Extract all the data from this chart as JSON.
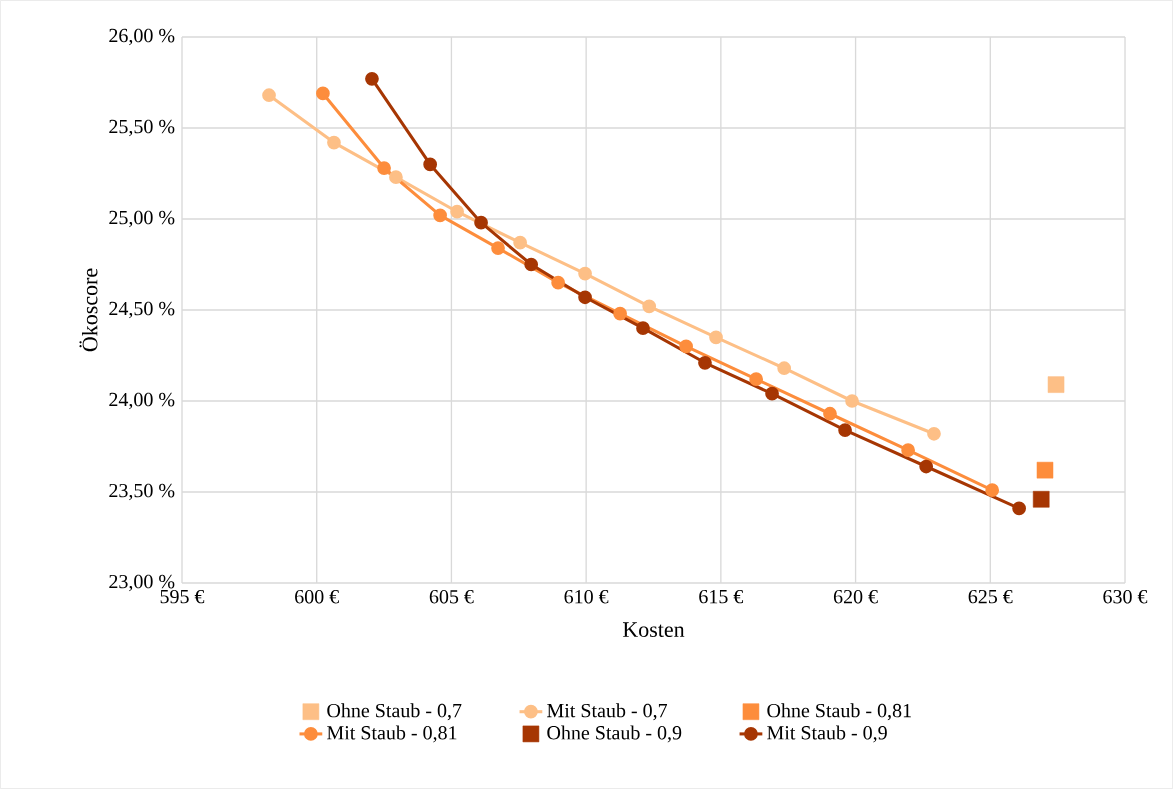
{
  "chart_data": {
    "type": "line",
    "xlabel": "Kosten",
    "ylabel": "Ökoscore",
    "xlim": [
      595,
      630
    ],
    "ylim": [
      23,
      26
    ],
    "xticks": [
      {
        "value": 595,
        "label": "595 €"
      },
      {
        "value": 600,
        "label": "600 €"
      },
      {
        "value": 605,
        "label": "605 €"
      },
      {
        "value": 610,
        "label": "610 €"
      },
      {
        "value": 615,
        "label": "615 €"
      },
      {
        "value": 620,
        "label": "620 €"
      },
      {
        "value": 625,
        "label": "625 €"
      },
      {
        "value": 630,
        "label": "630 €"
      }
    ],
    "yticks": [
      {
        "value": 23,
        "label": "23,00 %"
      },
      {
        "value": 23.5,
        "label": "23,50 %"
      },
      {
        "value": 24,
        "label": "24,00 %"
      },
      {
        "value": 24.5,
        "label": "24,50 %"
      },
      {
        "value": 25,
        "label": "25,00 %"
      },
      {
        "value": 25.5,
        "label": "25,50 %"
      },
      {
        "value": 26,
        "label": "26,00 %"
      }
    ],
    "grid": true,
    "legend": "bottom",
    "series": [
      {
        "name": "Ohne Staub - 0,7",
        "type": "scatter",
        "marker": "square",
        "color": "#fdbf86",
        "x": [
          627.44
        ],
        "values": [
          24.09
        ]
      },
      {
        "name": "Mit Staub - 0,7",
        "marker": "circle",
        "line_style": "solid",
        "color": "#fdbf86",
        "x": [
          598.23,
          600.64,
          602.94,
          605.21,
          607.55,
          609.96,
          612.34,
          614.82,
          617.35,
          619.87,
          622.91
        ],
        "values": [
          25.68,
          25.42,
          25.23,
          25.04,
          24.87,
          24.7,
          24.52,
          24.35,
          24.18,
          24.0,
          23.82
        ]
      },
      {
        "name": "Ohne Staub - 0,81",
        "type": "scatter",
        "marker": "square",
        "color": "#fd8d3c",
        "x": [
          627.03
        ],
        "values": [
          23.62
        ]
      },
      {
        "name": "Mit Staub - 0,81",
        "marker": "circle",
        "line_style": "solid",
        "color": "#fd8d3c",
        "x": [
          600.23,
          602.5,
          604.58,
          606.73,
          608.96,
          611.26,
          613.71,
          616.31,
          619.05,
          621.95,
          625.07
        ],
        "values": [
          25.69,
          25.28,
          25.02,
          24.84,
          24.65,
          24.48,
          24.3,
          24.12,
          23.93,
          23.73,
          23.51
        ]
      },
      {
        "name": "Ohne Staub - 0,9",
        "type": "scatter",
        "marker": "square",
        "color": "#a63603",
        "x": [
          626.89
        ],
        "values": [
          23.46
        ]
      },
      {
        "name": "Mit Staub - 0,9",
        "marker": "circle",
        "line_style": "solid",
        "color": "#a63603",
        "x": [
          602.05,
          604.21,
          606.1,
          607.96,
          609.96,
          612.11,
          614.41,
          616.9,
          619.61,
          622.62,
          626.07
        ],
        "values": [
          25.77,
          25.3,
          24.98,
          24.75,
          24.57,
          24.4,
          24.21,
          24.04,
          23.84,
          23.64,
          23.41
        ]
      }
    ]
  }
}
